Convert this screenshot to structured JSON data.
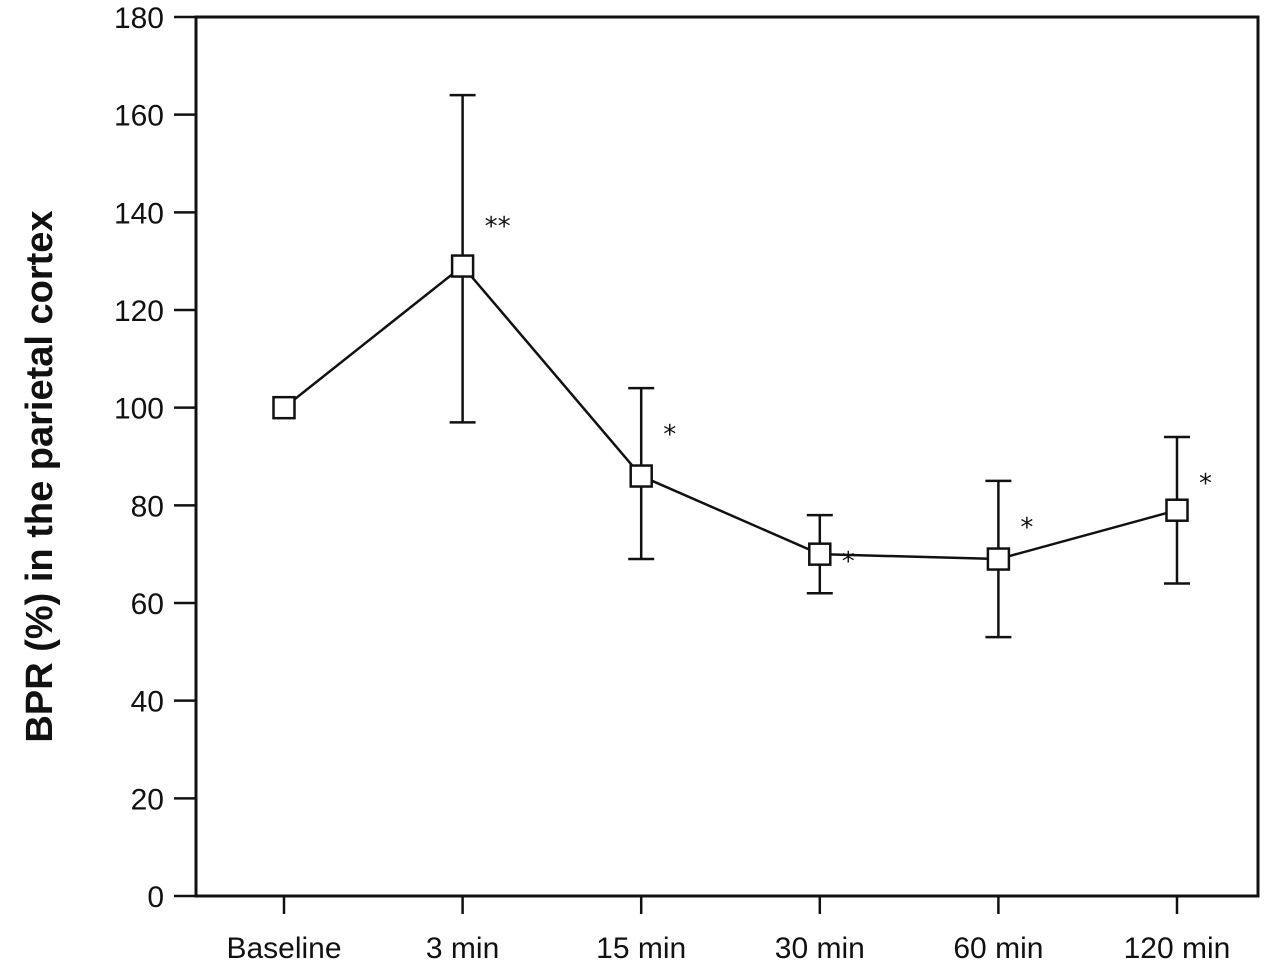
{
  "chart_data": {
    "type": "line",
    "title": "",
    "xlabel": "",
    "ylabel": "BPR (%) in the parietal cortex",
    "categories": [
      "Baseline",
      "3 min",
      "15 min",
      "30 min",
      "60 min",
      "120 min"
    ],
    "series": [
      {
        "values": [
          100,
          129,
          86,
          70,
          69,
          79
        ],
        "error_lower": [
          100,
          97,
          69,
          62,
          53,
          64
        ],
        "error_upper": [
          100,
          164,
          104,
          78,
          85,
          94
        ],
        "significance": [
          "",
          "**",
          "*",
          "*",
          "*",
          "*"
        ],
        "marker": "open-square",
        "color": "#111111"
      }
    ],
    "ylim": [
      0,
      180
    ],
    "yticks": [
      0,
      20,
      40,
      60,
      80,
      100,
      120,
      140,
      160,
      180
    ],
    "grid": false,
    "legend": "none"
  }
}
